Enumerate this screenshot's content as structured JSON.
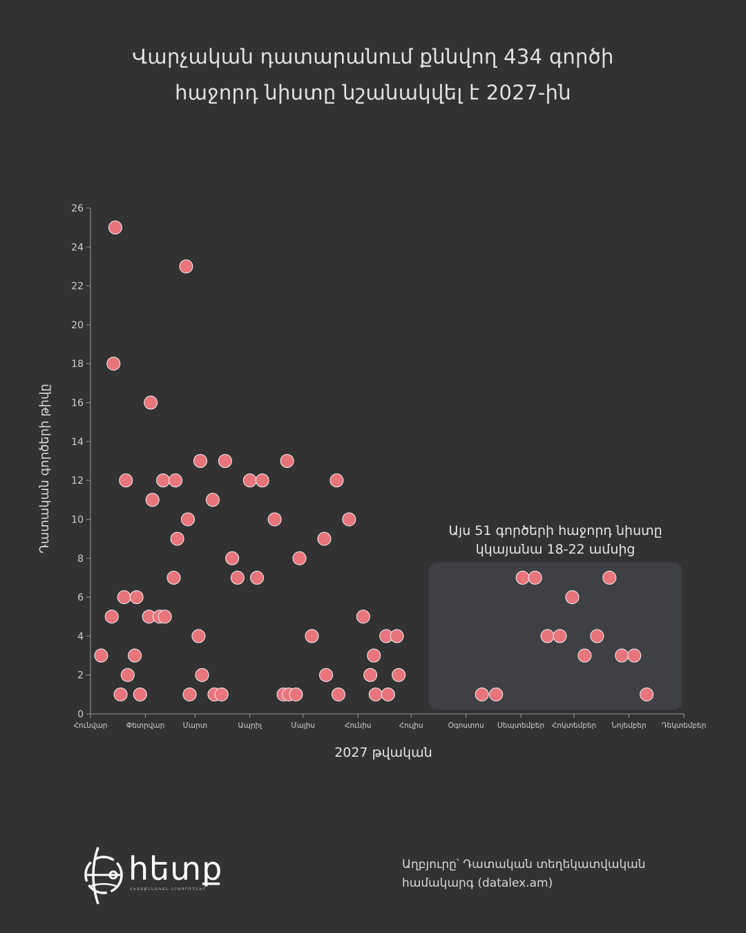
{
  "title_line1": "Վարչական դատարանում քննվող 434 գործի",
  "title_line2": "հաջորդ նիստը նշանակվել է 2027-ին",
  "source_line1": "Աղբյուրը՝ Դատական տեղեկատվական",
  "source_line2": "համակարգ (datalex.am)",
  "logo": {
    "word": "հետք",
    "subtitle": "ՀԵՏԱՔՆՆԱԿԱՆ ԼՐԱԳՐՈՂՆԵՐ"
  },
  "colors": {
    "background": "#323232",
    "point": "#e8747c",
    "highlight_box": "#3e4044",
    "text": "#e2e2e2"
  },
  "chart_data": {
    "type": "scatter",
    "xlabel": "2027 թվական",
    "ylabel": "Դատական գործերի թիվը",
    "ylim": [
      0,
      26
    ],
    "yticks": [
      0,
      2,
      4,
      6,
      8,
      10,
      12,
      14,
      16,
      18,
      20,
      22,
      24,
      26
    ],
    "xlim_days": [
      0,
      335
    ],
    "month_ticks": [
      {
        "label": "Հունվար",
        "day": 0
      },
      {
        "label": "Փետրվար",
        "day": 31
      },
      {
        "label": "Մարտ",
        "day": 59
      },
      {
        "label": "Ապրիլ",
        "day": 90
      },
      {
        "label": "Մայիս",
        "day": 120
      },
      {
        "label": "Հունիս",
        "day": 151
      },
      {
        "label": "Հուլիս",
        "day": 181
      },
      {
        "label": "Օգոստոս",
        "day": 212
      },
      {
        "label": "Սեպտեմբեր",
        "day": 243
      },
      {
        "label": "Հոկտեմբեր",
        "day": 273
      },
      {
        "label": "Նոյեմբեր",
        "day": 304
      },
      {
        "label": "Դեկտեմբեր",
        "day": 335
      }
    ],
    "annotation": {
      "text_line1": "Այս 51 գործերի հաջորդ նիստը",
      "text_line2": "կկայանա 18-22 ամսից",
      "x_range_days": [
        191,
        334
      ],
      "y_range": [
        0,
        8
      ]
    },
    "points": [
      {
        "x": 6,
        "y": 3
      },
      {
        "x": 12,
        "y": 5
      },
      {
        "x": 13,
        "y": 18
      },
      {
        "x": 14,
        "y": 25
      },
      {
        "x": 17,
        "y": 1
      },
      {
        "x": 19,
        "y": 6
      },
      {
        "x": 20,
        "y": 12
      },
      {
        "x": 21,
        "y": 2
      },
      {
        "x": 25,
        "y": 3
      },
      {
        "x": 26,
        "y": 6
      },
      {
        "x": 28,
        "y": 1
      },
      {
        "x": 33,
        "y": 5
      },
      {
        "x": 34,
        "y": 16
      },
      {
        "x": 35,
        "y": 11
      },
      {
        "x": 39,
        "y": 5
      },
      {
        "x": 41,
        "y": 12
      },
      {
        "x": 42,
        "y": 5
      },
      {
        "x": 47,
        "y": 7
      },
      {
        "x": 48,
        "y": 12
      },
      {
        "x": 49,
        "y": 9
      },
      {
        "x": 54,
        "y": 23
      },
      {
        "x": 55,
        "y": 10
      },
      {
        "x": 56,
        "y": 1
      },
      {
        "x": 61,
        "y": 4
      },
      {
        "x": 62,
        "y": 13
      },
      {
        "x": 63,
        "y": 2
      },
      {
        "x": 69,
        "y": 11
      },
      {
        "x": 70,
        "y": 1
      },
      {
        "x": 74,
        "y": 1
      },
      {
        "x": 76,
        "y": 13
      },
      {
        "x": 80,
        "y": 8
      },
      {
        "x": 83,
        "y": 7
      },
      {
        "x": 90,
        "y": 12
      },
      {
        "x": 94,
        "y": 7
      },
      {
        "x": 97,
        "y": 12
      },
      {
        "x": 104,
        "y": 10
      },
      {
        "x": 109,
        "y": 1
      },
      {
        "x": 111,
        "y": 13
      },
      {
        "x": 112,
        "y": 1
      },
      {
        "x": 116,
        "y": 1
      },
      {
        "x": 118,
        "y": 8
      },
      {
        "x": 125,
        "y": 4
      },
      {
        "x": 132,
        "y": 9
      },
      {
        "x": 133,
        "y": 2
      },
      {
        "x": 139,
        "y": 12
      },
      {
        "x": 140,
        "y": 1
      },
      {
        "x": 146,
        "y": 10
      },
      {
        "x": 154,
        "y": 5
      },
      {
        "x": 158,
        "y": 2
      },
      {
        "x": 160,
        "y": 3
      },
      {
        "x": 161,
        "y": 1
      },
      {
        "x": 167,
        "y": 4
      },
      {
        "x": 168,
        "y": 1
      },
      {
        "x": 173,
        "y": 4
      },
      {
        "x": 174,
        "y": 2
      },
      {
        "x": 221,
        "y": 1
      },
      {
        "x": 229,
        "y": 1
      },
      {
        "x": 244,
        "y": 7
      },
      {
        "x": 251,
        "y": 7
      },
      {
        "x": 258,
        "y": 4
      },
      {
        "x": 265,
        "y": 4
      },
      {
        "x": 272,
        "y": 6
      },
      {
        "x": 279,
        "y": 3
      },
      {
        "x": 286,
        "y": 4
      },
      {
        "x": 293,
        "y": 7
      },
      {
        "x": 300,
        "y": 3
      },
      {
        "x": 307,
        "y": 3
      },
      {
        "x": 314,
        "y": 1
      }
    ]
  }
}
